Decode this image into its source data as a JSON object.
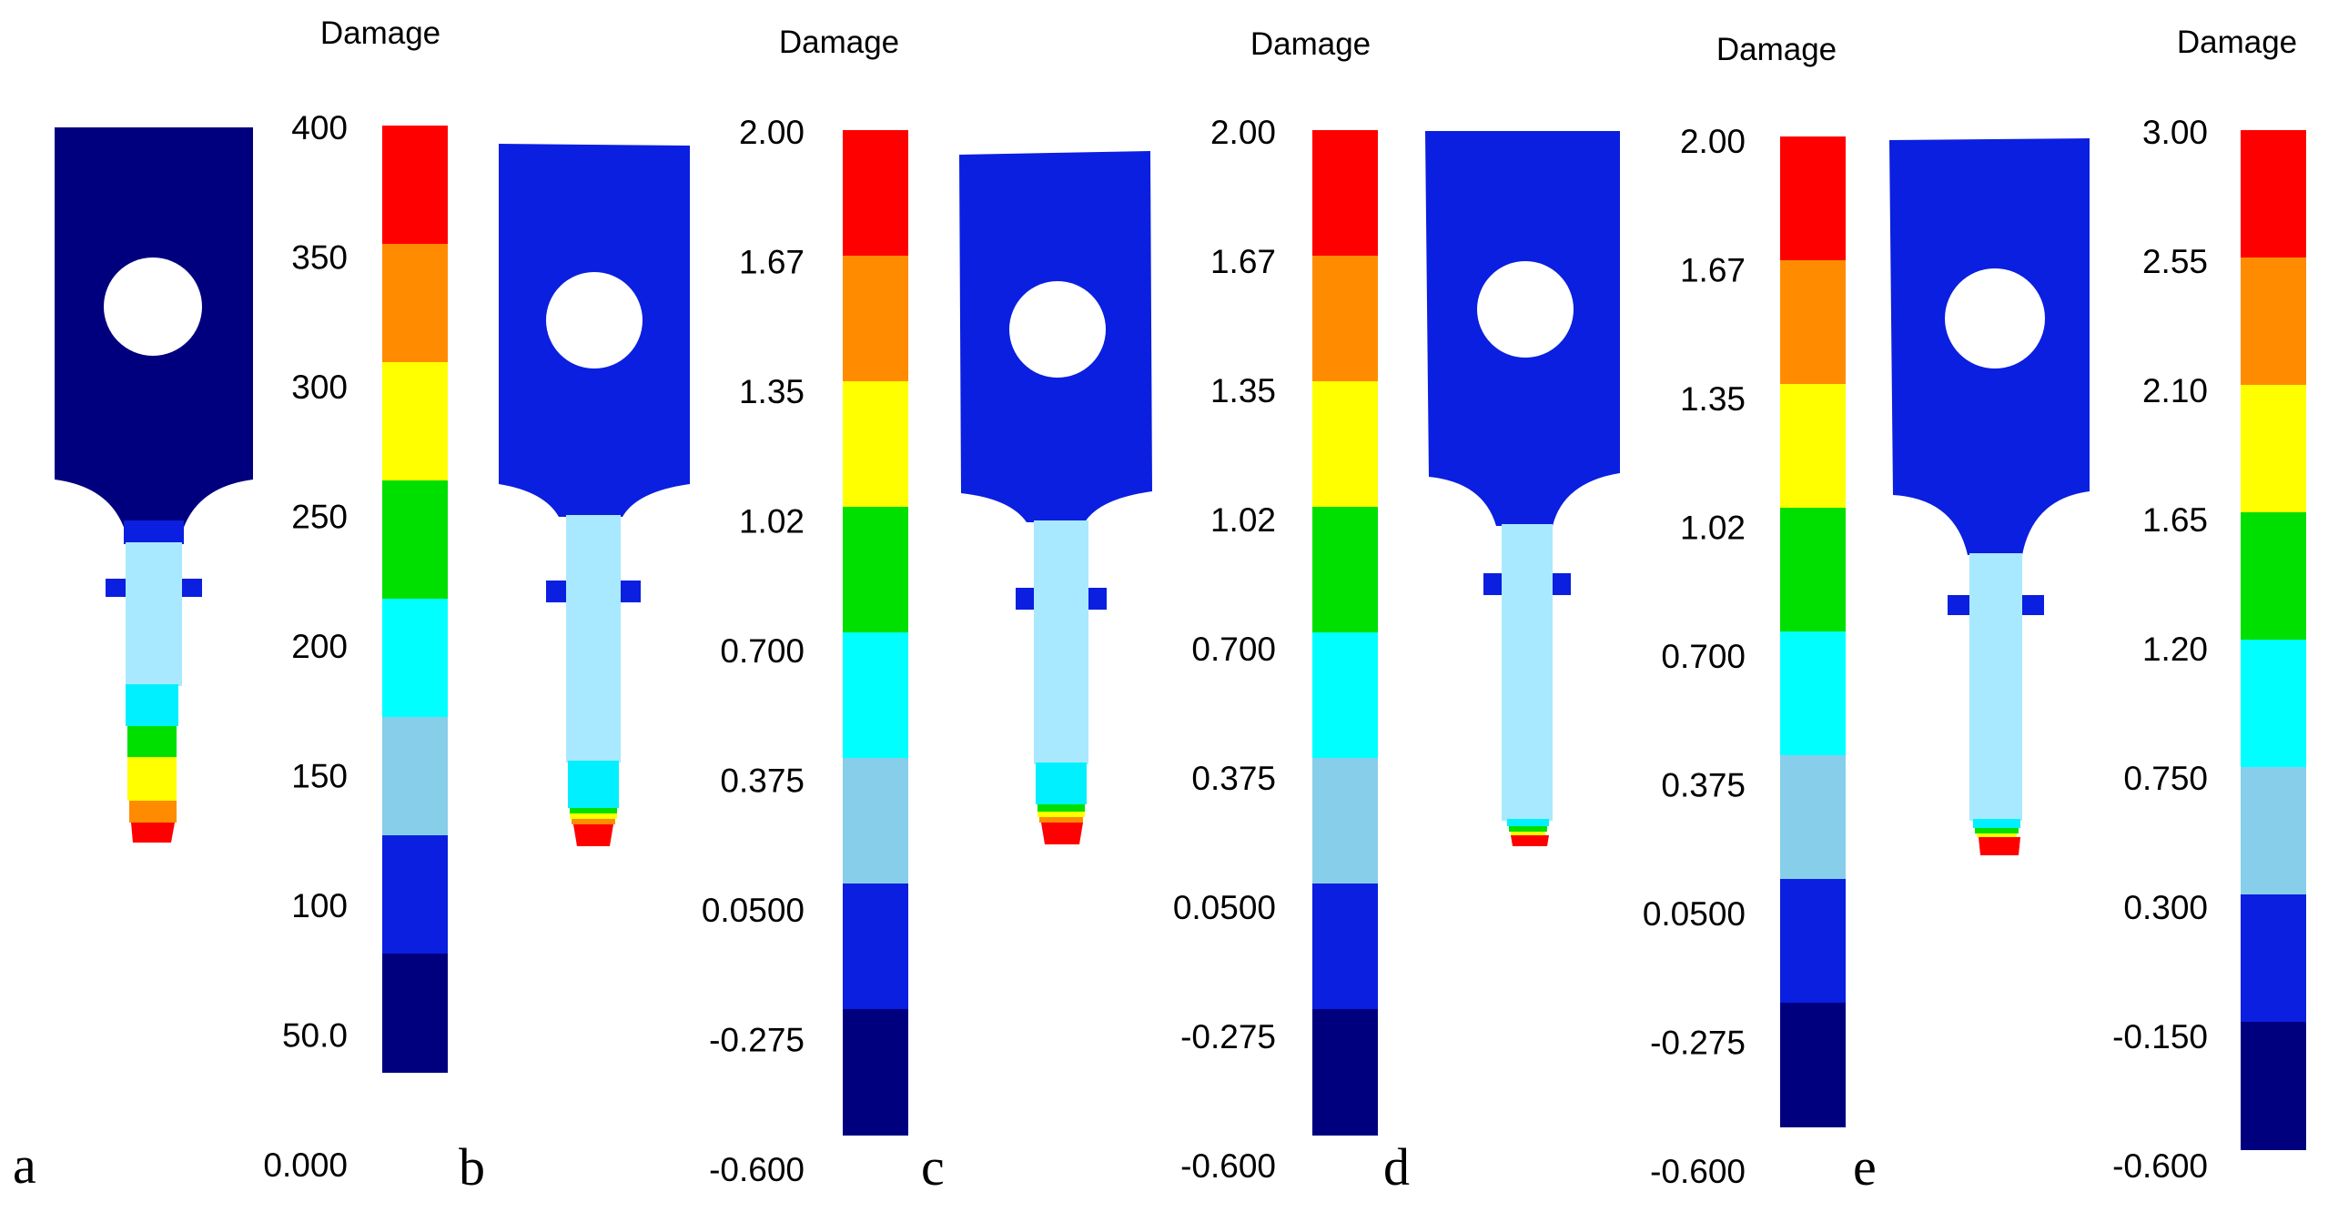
{
  "figure": {
    "panels": [
      {
        "letter": "a",
        "title": "Damage",
        "ticks": [
          "400",
          "350",
          "300",
          "250",
          "200",
          "150",
          "100",
          "50.0",
          "0.000"
        ],
        "specimen_color": "#00007f"
      },
      {
        "letter": "b",
        "title": "Damage",
        "ticks": [
          "2.00",
          "1.67",
          "1.35",
          "1.02",
          "0.700",
          "0.375",
          "0.0500",
          "-0.275",
          "-0.600"
        ],
        "specimen_color": "#0a1fe0"
      },
      {
        "letter": "c",
        "title": "Damage",
        "ticks": [
          "2.00",
          "1.67",
          "1.35",
          "1.02",
          "0.700",
          "0.375",
          "0.0500",
          "-0.275",
          "-0.600"
        ],
        "specimen_color": "#0a1fe0"
      },
      {
        "letter": "d",
        "title": "Damage",
        "ticks": [
          "2.00",
          "1.67",
          "1.35",
          "1.02",
          "0.700",
          "0.375",
          "0.0500",
          "-0.275",
          "-0.600"
        ],
        "specimen_color": "#0a1fe0"
      },
      {
        "letter": "e",
        "title": "Damage",
        "ticks": [
          "3.00",
          "2.55",
          "2.10",
          "1.65",
          "1.20",
          "0.750",
          "0.300",
          "-0.150",
          "-0.600"
        ],
        "specimen_color": "#0a1fe0"
      }
    ],
    "colorbar_bands": [
      "#ff0000",
      "#ff8c00",
      "#ffff00",
      "#00e000",
      "#00ffff",
      "#87ceeb",
      "#0a1fe0",
      "#00007f"
    ],
    "contour_colors": {
      "neck": "#a8e9ff",
      "cyan": "#00f0ff",
      "green": "#00e000",
      "yellow": "#ffff00",
      "orange": "#ff8c00",
      "red": "#ff0000"
    }
  }
}
